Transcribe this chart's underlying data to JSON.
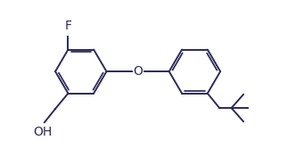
{
  "bg_color": "#ffffff",
  "line_color": "#2a2a5a",
  "line_width": 1.4,
  "font_size": 10,
  "fig_width": 3.22,
  "fig_height": 1.76,
  "dpi": 100,
  "xlim": [
    0,
    10
  ],
  "ylim": [
    0,
    5.5
  ]
}
